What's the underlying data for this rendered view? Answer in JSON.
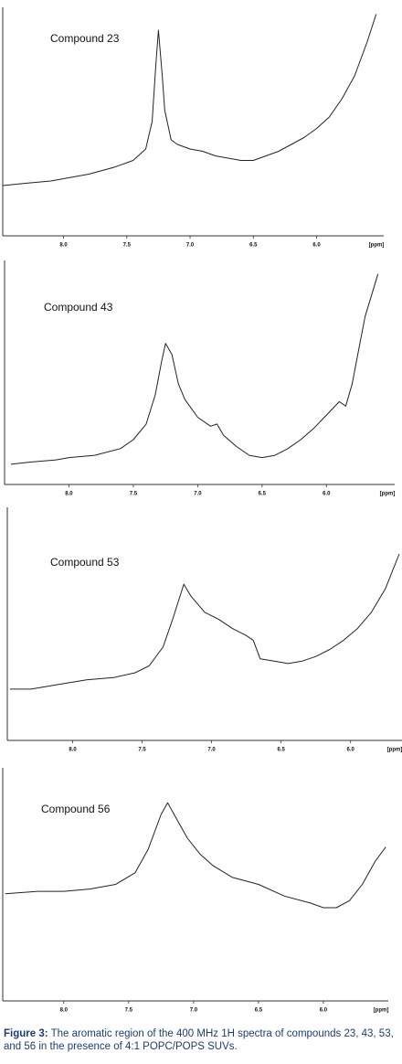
{
  "chart_data": [
    {
      "type": "line",
      "title": "Compound 23",
      "xlabel": "[ppm]",
      "xlim": [
        8.48,
        5.47
      ],
      "ylim": [
        0,
        100
      ],
      "xticks": [
        {
          "value": 8,
          "label": "8.0"
        },
        7.5,
        {
          "value": 7,
          "label": "7.0"
        },
        6.5,
        {
          "value": 6,
          "label": "6.0"
        }
      ],
      "color": "#222222",
      "x": [
        8.48,
        8.3,
        8.1,
        8.0,
        7.8,
        7.6,
        7.45,
        7.35,
        7.3,
        7.27,
        7.25,
        7.22,
        7.2,
        7.15,
        7.1,
        7.0,
        6.9,
        6.8,
        6.7,
        6.6,
        6.5,
        6.4,
        6.3,
        6.2,
        6.1,
        6.0,
        5.9,
        5.8,
        5.7,
        5.6,
        5.53
      ],
      "values": [
        22,
        23,
        24,
        25,
        27,
        30,
        33,
        38,
        50,
        75,
        90,
        70,
        55,
        42,
        40,
        38,
        37,
        35,
        34,
        33,
        33,
        35,
        37,
        40,
        43,
        47,
        52,
        60,
        70,
        85,
        97
      ]
    },
    {
      "type": "line",
      "title": "Compound 43",
      "xlabel": "[ppm]",
      "xlim": [
        8.5,
        5.47
      ],
      "ylim": [
        0,
        100
      ],
      "xticks": [
        {
          "value": 8,
          "label": "8.0"
        },
        7.5,
        {
          "value": 7,
          "label": "7.0"
        },
        6.5,
        {
          "value": 6,
          "label": "6.0"
        }
      ],
      "color": "#222222",
      "x": [
        8.45,
        8.3,
        8.1,
        8.0,
        7.8,
        7.6,
        7.5,
        7.4,
        7.33,
        7.28,
        7.25,
        7.2,
        7.15,
        7.1,
        7.0,
        6.9,
        6.85,
        6.8,
        6.7,
        6.6,
        6.5,
        6.4,
        6.3,
        6.2,
        6.1,
        6.0,
        5.9,
        5.85,
        5.8,
        5.75,
        5.7,
        5.6
      ],
      "values": [
        9,
        10,
        11,
        12,
        13,
        16,
        20,
        27,
        40,
        55,
        63,
        58,
        45,
        38,
        30,
        26,
        27,
        22,
        17,
        13,
        12,
        13,
        16,
        20,
        25,
        31,
        37,
        35,
        45,
        60,
        75,
        94
      ]
    },
    {
      "type": "line",
      "title": "Compound 53",
      "xlabel": "[ppm]",
      "xlim": [
        8.47,
        5.63
      ],
      "ylim": [
        0,
        100
      ],
      "xticks": [
        {
          "value": 8,
          "label": "8.0"
        },
        7.5,
        {
          "value": 7,
          "label": "7.0"
        },
        6.5,
        {
          "value": 6,
          "label": "6.0"
        }
      ],
      "color": "#222222",
      "x": [
        8.45,
        8.3,
        8.1,
        7.9,
        7.7,
        7.55,
        7.45,
        7.35,
        7.28,
        7.2,
        7.15,
        7.05,
        6.95,
        6.85,
        6.75,
        6.7,
        6.65,
        6.55,
        6.45,
        6.35,
        6.25,
        6.15,
        6.05,
        5.95,
        5.85,
        5.75,
        5.65
      ],
      "values": [
        22,
        22,
        24,
        26,
        27,
        29,
        32,
        40,
        52,
        67,
        62,
        55,
        52,
        48,
        45,
        43,
        35,
        34,
        33,
        34,
        36,
        39,
        43,
        48,
        55,
        65,
        80
      ]
    },
    {
      "type": "line",
      "title": "Compound 56",
      "xlabel": "[ppm]",
      "xlim": [
        8.47,
        5.5
      ],
      "ylim": [
        0,
        100
      ],
      "xticks": [
        {
          "value": 8,
          "label": "8.0"
        },
        7.5,
        {
          "value": 7,
          "label": "7.0"
        },
        6.5,
        {
          "value": 6,
          "label": "6.0"
        }
      ],
      "color": "#222222",
      "x": [
        8.45,
        8.2,
        8.0,
        7.8,
        7.6,
        7.45,
        7.35,
        7.25,
        7.2,
        7.15,
        7.05,
        6.95,
        6.85,
        6.7,
        6.5,
        6.3,
        6.1,
        6.0,
        5.9,
        5.8,
        5.7,
        5.6,
        5.52
      ],
      "values": [
        46,
        47,
        47,
        48,
        50,
        55,
        65,
        80,
        85,
        80,
        70,
        63,
        58,
        53,
        50,
        45,
        42,
        40,
        40,
        43,
        50,
        60,
        66
      ]
    }
  ],
  "caption": {
    "label": "Figure 3:",
    "text": "The aromatic region of the 400 MHz 1H spectra of compounds 23, 43, 53, and 56 in the presence of 4:1 POPC/POPS SUVs."
  }
}
